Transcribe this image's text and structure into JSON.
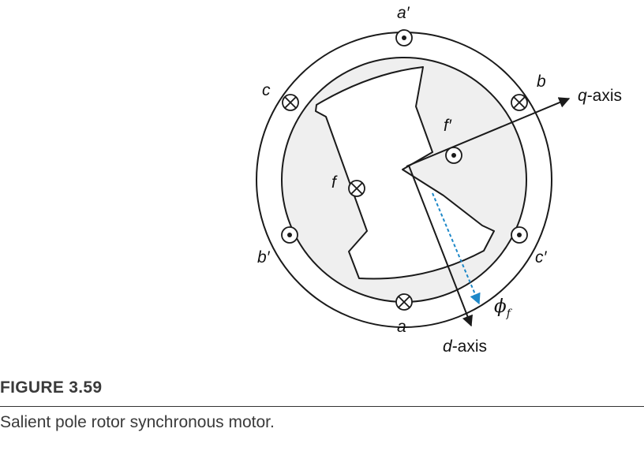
{
  "diagram": {
    "labels": {
      "a_prime": "a′",
      "a": "a",
      "b": "b",
      "b_prime": "b′",
      "c": "c",
      "c_prime": "c′",
      "f": "f",
      "f_prime": "f′",
      "q_axis_letter": "q",
      "d_axis_letter": "d",
      "axis_suffix": "-axis",
      "phi": "ϕ",
      "phi_sub": "f"
    },
    "colors": {
      "stroke": "#1a1a1a",
      "rotor_fill": "#efefef",
      "flux_arrow": "#1e88c8"
    }
  },
  "figure": {
    "number": "FIGURE 3.59",
    "caption": "Salient pole rotor synchronous motor."
  }
}
